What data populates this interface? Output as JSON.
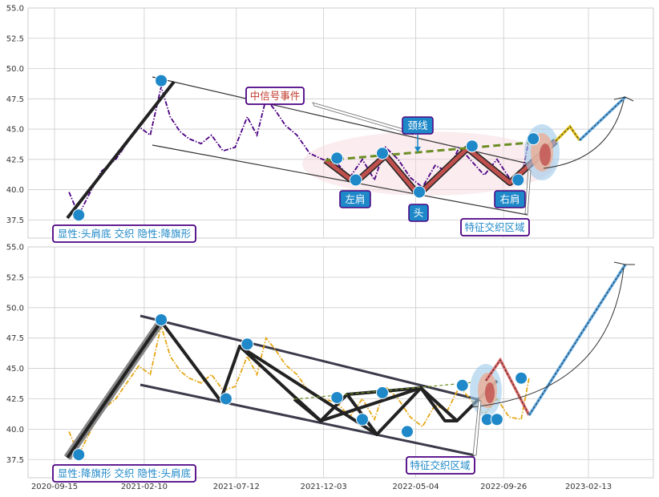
{
  "chart_data": [
    {
      "type": "line",
      "panel": "top",
      "ylim": [
        36,
        55
      ],
      "y_ticks": [
        "37.5",
        "40.0",
        "42.5",
        "45.0",
        "47.5",
        "50.0",
        "52.5",
        "55.0"
      ],
      "grid": true,
      "series": [
        {
          "style": "dash-dot",
          "color": "#4b0082",
          "x": [
            "2020-10-09",
            "2020-10-25",
            "2020-11-10",
            "2020-12-01",
            "2020-12-25",
            "2021-01-15",
            "2021-02-01",
            "2021-02-20",
            "2021-03-10",
            "2021-03-25",
            "2021-04-10",
            "2021-04-25",
            "2021-05-15",
            "2021-06-01",
            "2021-06-20",
            "2021-07-10",
            "2021-07-30",
            "2021-08-15",
            "2021-08-30",
            "2021-09-15",
            "2021-10-01",
            "2021-10-20",
            "2021-11-10",
            "2021-12-01",
            "2021-12-25",
            "2022-01-15",
            "2022-02-05",
            "2022-02-25",
            "2022-03-15",
            "2022-04-05",
            "2022-04-25",
            "2022-05-15",
            "2022-06-05",
            "2022-06-25",
            "2022-07-15",
            "2022-08-05",
            "2022-08-25",
            "2022-09-15",
            "2022-10-05",
            "2022-10-25",
            "2022-11-07"
          ],
          "y": [
            39.8,
            37.9,
            39.5,
            41.5,
            42.5,
            44,
            45.2,
            44.5,
            48.5,
            46,
            44.8,
            44.2,
            43.8,
            44.5,
            43.2,
            43.5,
            46,
            44.5,
            47.5,
            46.5,
            45.3,
            44.5,
            43,
            42.5,
            42.2,
            41,
            42.5,
            40.8,
            43.5,
            42.5,
            41,
            40.2,
            42,
            41.5,
            43.5,
            42.3,
            41.2,
            42.5,
            41,
            40.8,
            44.2
          ]
        }
      ],
      "markers": [
        {
          "x": "2020-10-25",
          "y": 37.9
        },
        {
          "x": "2021-03-10",
          "y": 49.0
        },
        {
          "x": "2021-12-25",
          "y": 42.6
        },
        {
          "x": "2022-01-25",
          "y": 40.8
        },
        {
          "x": "2022-03-10",
          "y": 43.0
        },
        {
          "x": "2022-05-10",
          "y": 39.8
        },
        {
          "x": "2022-08-05",
          "y": 43.6
        },
        {
          "x": "2022-10-20",
          "y": 40.8
        },
        {
          "x": "2022-11-14",
          "y": 44.2
        }
      ],
      "annotations": {
        "signal": "中信号事件",
        "neckline": "颈线",
        "left_shoulder": "左肩",
        "head": "头",
        "right_shoulder": "右肩",
        "feature_zone": "特征交织区域",
        "pattern": "显性:头肩底 交织 隐性:降旗形"
      }
    },
    {
      "type": "line",
      "panel": "bottom",
      "ylim": [
        36,
        55
      ],
      "y_ticks": [
        "37.5",
        "40.0",
        "42.5",
        "45.0",
        "47.5",
        "50.0",
        "52.5",
        "55.0"
      ],
      "x_ticks": [
        "2020-09-15",
        "2021-02-10",
        "2021-07-12",
        "2021-12-03",
        "2022-05-04",
        "2022-09-26",
        "2023-02-13"
      ],
      "grid": true,
      "series": [
        {
          "style": "dash-dot",
          "color": "#e6a817",
          "x": [
            "2020-10-09",
            "2020-10-25",
            "2020-11-10",
            "2020-12-01",
            "2020-12-25",
            "2021-01-15",
            "2021-02-01",
            "2021-02-20",
            "2021-03-10",
            "2021-03-25",
            "2021-04-10",
            "2021-04-25",
            "2021-05-15",
            "2021-06-01",
            "2021-06-20",
            "2021-07-10",
            "2021-07-30",
            "2021-08-15",
            "2021-08-30",
            "2021-09-15",
            "2021-10-01",
            "2021-10-20",
            "2021-11-10",
            "2021-12-01",
            "2021-12-25",
            "2022-01-15",
            "2022-02-05",
            "2022-02-25",
            "2022-03-15",
            "2022-04-05",
            "2022-04-25",
            "2022-05-15",
            "2022-06-05",
            "2022-06-25",
            "2022-07-15",
            "2022-08-05",
            "2022-08-25",
            "2022-09-15",
            "2022-10-05",
            "2022-10-25",
            "2022-11-07"
          ],
          "y": [
            39.8,
            37.9,
            39.5,
            41.5,
            42.5,
            44,
            45.2,
            44.5,
            48.5,
            46,
            44.8,
            44.2,
            43.8,
            44.5,
            43.2,
            43.5,
            46,
            44.5,
            47.5,
            46.5,
            45.3,
            44.5,
            43,
            42.5,
            42.2,
            41,
            42.5,
            40.8,
            43.5,
            42.5,
            41,
            40.2,
            42,
            41.5,
            43.5,
            42.3,
            41.2,
            42.5,
            41,
            40.8,
            44.2
          ]
        }
      ],
      "markers": [
        {
          "x": "2020-10-25",
          "y": 37.9
        },
        {
          "x": "2021-03-10",
          "y": 49.0
        },
        {
          "x": "2021-06-25",
          "y": 42.5
        },
        {
          "x": "2021-07-30",
          "y": 47.0
        },
        {
          "x": "2021-12-25",
          "y": 42.6
        },
        {
          "x": "2022-02-05",
          "y": 40.8
        },
        {
          "x": "2022-03-10",
          "y": 43.0
        },
        {
          "x": "2022-04-20",
          "y": 39.8
        },
        {
          "x": "2022-07-20",
          "y": 43.6
        },
        {
          "x": "2022-08-30",
          "y": 40.8
        },
        {
          "x": "2022-09-15",
          "y": 40.8
        },
        {
          "x": "2022-10-25",
          "y": 44.2
        }
      ],
      "annotations": {
        "feature_zone": "特征交织区域",
        "pattern": "显性:降旗形 交织 隐性:头肩底"
      }
    }
  ]
}
